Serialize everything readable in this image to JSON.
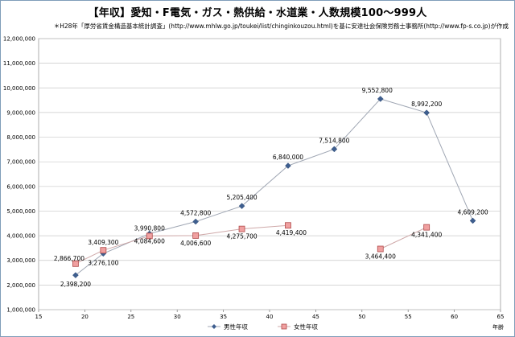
{
  "chart_data": {
    "type": "line",
    "title": "【年収】愛知・F電気・ガス・熱供給・水道業・人数規模100～999人",
    "subtitle": "＊H28年「厚労省賃金構造基本統計調査」(http://www.mhlw.go.jp/toukei/list/chinginkouzou.html)を基に安達社会保険労務士事務所(http://www.fp-s.co.jp)が作成",
    "xlabel": "年齢",
    "ylabel": "",
    "xlim": [
      15,
      65
    ],
    "ylim": [
      1000000,
      12000000
    ],
    "x_ticks": [
      "15",
      "20",
      "25",
      "30",
      "35",
      "40",
      "45",
      "50",
      "55",
      "60",
      "65"
    ],
    "y_ticks": [
      "1,000,000",
      "2,000,000",
      "3,000,000",
      "4,000,000",
      "5,000,000",
      "6,000,000",
      "7,000,000",
      "8,000,000",
      "9,000,000",
      "10,000,000",
      "11,000,000",
      "12,000,000"
    ],
    "grid": true,
    "legend_position": "bottom",
    "series": [
      {
        "name": "男性年収",
        "color": "#4a6fa5",
        "marker": "diamond",
        "points": [
          {
            "x": 19,
            "y": 2398200,
            "label": "2,398,200"
          },
          {
            "x": 22,
            "y": 3276100,
            "label": "3,276,100"
          },
          {
            "x": 27,
            "y": 4084600,
            "label": "4,084,600"
          },
          {
            "x": 32,
            "y": 4572800,
            "label": "4,572,800"
          },
          {
            "x": 37,
            "y": 5205400,
            "label": "5,205,400"
          },
          {
            "x": 42,
            "y": 6840000,
            "label": "6,840,000"
          },
          {
            "x": 47,
            "y": 7514800,
            "label": "7,514,800"
          },
          {
            "x": 52,
            "y": 9552800,
            "label": "9,552,800"
          },
          {
            "x": 57,
            "y": 8992200,
            "label": "8,992,200"
          },
          {
            "x": 62,
            "y": 4609200,
            "label": "4,609,200"
          }
        ]
      },
      {
        "name": "女性年収",
        "color": "#e07070",
        "marker": "square",
        "points": [
          {
            "x": 19,
            "y": 2866700,
            "label": "2,866,700"
          },
          {
            "x": 22,
            "y": 3409300,
            "label": "3,409,300"
          },
          {
            "x": 27,
            "y": 3990800,
            "label": "3,990,800"
          },
          {
            "x": 32,
            "y": 4006600,
            "label": "4,006,600"
          },
          {
            "x": 37,
            "y": 4275700,
            "label": "4,275,700"
          },
          {
            "x": 42,
            "y": 4419400,
            "label": "4,419,400"
          },
          {
            "x": 52,
            "y": 3464400,
            "label": "3,464,400",
            "break_before": true
          },
          {
            "x": 57,
            "y": 4341400,
            "label": "4,341,400"
          }
        ]
      }
    ]
  }
}
